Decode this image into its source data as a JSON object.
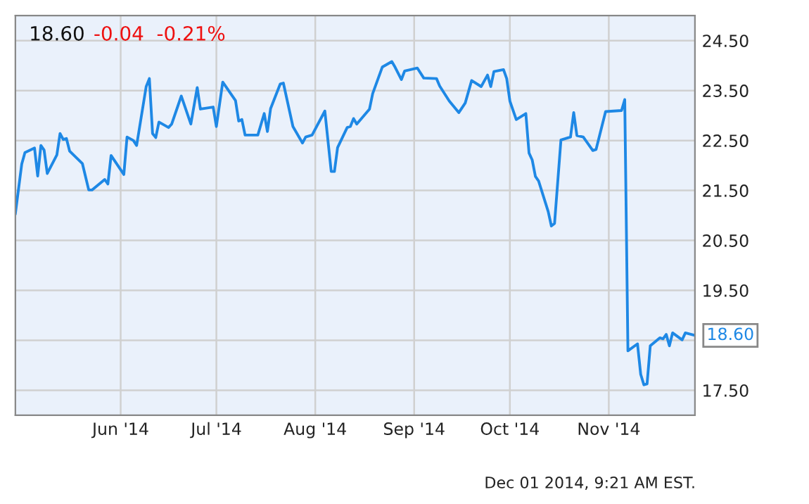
{
  "chart_data": {
    "type": "line",
    "title": "18.60",
    "subtitle": "-0.04  -0.21%",
    "annotations": [
      "Dec 01 2014, 9:21 AM EST."
    ],
    "x": [
      "2014-04-29",
      "2014-05-01",
      "2014-05-02",
      "2014-05-05",
      "2014-05-06",
      "2014-05-07",
      "2014-05-08",
      "2014-05-09",
      "2014-05-12",
      "2014-05-13",
      "2014-05-14",
      "2014-05-15",
      "2014-05-16",
      "2014-05-20",
      "2014-05-22",
      "2014-05-23",
      "2014-05-27",
      "2014-05-28",
      "2014-05-29",
      "2014-06-02",
      "2014-06-03",
      "2014-06-05",
      "2014-06-06",
      "2014-06-09",
      "2014-06-10",
      "2014-06-11",
      "2014-06-12",
      "2014-06-13",
      "2014-06-16",
      "2014-06-17",
      "2014-06-20",
      "2014-06-23",
      "2014-06-25",
      "2014-06-26",
      "2014-06-30",
      "2014-07-01",
      "2014-07-03",
      "2014-07-07",
      "2014-07-08",
      "2014-07-09",
      "2014-07-10",
      "2014-07-14",
      "2014-07-16",
      "2014-07-17",
      "2014-07-18",
      "2014-07-21",
      "2014-07-22",
      "2014-07-25",
      "2014-07-28",
      "2014-07-29",
      "2014-07-31",
      "2014-08-04",
      "2014-08-06",
      "2014-08-07",
      "2014-08-08",
      "2014-08-11",
      "2014-08-12",
      "2014-08-13",
      "2014-08-14",
      "2014-08-18",
      "2014-08-19",
      "2014-08-22",
      "2014-08-25",
      "2014-08-26",
      "2014-08-28",
      "2014-08-29",
      "2014-09-02",
      "2014-09-04",
      "2014-09-08",
      "2014-09-09",
      "2014-09-12",
      "2014-09-15",
      "2014-09-17",
      "2014-09-19",
      "2014-09-22",
      "2014-09-24",
      "2014-09-25",
      "2014-09-26",
      "2014-09-29",
      "2014-09-30",
      "2014-10-01",
      "2014-10-03",
      "2014-10-06",
      "2014-10-07",
      "2014-10-08",
      "2014-10-09",
      "2014-10-10",
      "2014-10-13",
      "2014-10-14",
      "2014-10-15",
      "2014-10-17",
      "2014-10-20",
      "2014-10-21",
      "2014-10-22",
      "2014-10-24",
      "2014-10-27",
      "2014-10-28",
      "2014-10-31",
      "2014-11-05",
      "2014-11-06",
      "2014-11-07",
      "2014-11-10",
      "2014-11-11",
      "2014-11-12",
      "2014-11-13",
      "2014-11-14",
      "2014-11-17",
      "2014-11-18",
      "2014-11-19",
      "2014-11-20",
      "2014-11-21",
      "2014-11-24",
      "2014-11-25",
      "2014-11-28"
    ],
    "series": [
      {
        "color": "#1e88e5",
        "values": [
          21.04,
          22.03,
          22.26,
          22.35,
          21.79,
          22.4,
          22.31,
          21.84,
          22.21,
          22.64,
          22.52,
          22.54,
          22.29,
          22.04,
          21.51,
          21.51,
          21.72,
          21.63,
          22.2,
          21.82,
          22.57,
          22.5,
          22.4,
          23.58,
          23.74,
          22.64,
          22.56,
          22.87,
          22.76,
          22.83,
          23.39,
          22.83,
          23.56,
          23.13,
          23.17,
          22.78,
          23.67,
          23.3,
          22.89,
          22.92,
          22.61,
          22.61,
          23.04,
          22.68,
          23.14,
          23.63,
          23.65,
          22.78,
          22.45,
          22.57,
          22.61,
          23.09,
          21.88,
          21.88,
          22.36,
          22.76,
          22.78,
          22.94,
          22.83,
          23.13,
          23.44,
          23.97,
          24.08,
          23.97,
          23.72,
          23.89,
          23.95,
          23.75,
          23.74,
          23.59,
          23.29,
          23.06,
          23.25,
          23.7,
          23.58,
          23.81,
          23.58,
          23.88,
          23.92,
          23.74,
          23.29,
          22.92,
          23.04,
          22.25,
          22.11,
          21.78,
          21.69,
          21.08,
          20.79,
          20.84,
          22.51,
          22.57,
          23.06,
          22.6,
          22.57,
          22.3,
          22.32,
          23.08,
          23.1,
          23.32,
          18.29,
          18.43,
          17.82,
          17.61,
          17.63,
          18.39,
          18.55,
          18.53,
          18.62,
          18.39,
          18.65,
          18.51,
          18.65,
          18.6
        ],
        "value_labels": [
          null,
          null,
          null,
          null,
          null,
          null,
          null,
          null,
          null,
          null,
          null,
          null,
          null,
          null,
          null,
          null,
          null,
          null,
          null,
          null,
          null,
          null,
          null,
          null,
          null,
          null,
          null,
          null,
          null,
          null,
          null,
          null,
          null,
          null,
          null,
          null,
          null,
          null,
          null,
          null,
          null,
          null,
          null,
          null,
          null,
          null,
          null,
          null,
          null,
          null,
          null,
          null,
          null,
          null,
          null,
          null,
          null,
          null,
          null,
          null,
          null,
          null,
          null,
          null,
          null,
          null,
          null,
          null,
          null,
          null,
          null,
          null,
          null,
          null,
          null,
          null,
          null,
          null,
          null,
          null,
          null,
          null,
          null,
          null,
          null,
          null,
          null,
          null,
          null,
          null,
          null,
          null,
          null,
          null,
          null,
          null,
          null,
          null,
          null,
          null,
          null,
          null,
          null,
          null,
          null,
          null,
          null,
          null,
          null,
          null,
          null,
          null,
          null,
          "18.60"
        ]
      }
    ],
    "xlim": [
      "2014-04-29",
      "2014-11-28"
    ],
    "xticks": [
      {
        "value": "2014-06-01",
        "label": "Jun '14"
      },
      {
        "value": "2014-07-01",
        "label": "Jul '14"
      },
      {
        "value": "2014-08-01",
        "label": "Aug '14"
      },
      {
        "value": "2014-09-01",
        "label": "Sep '14"
      },
      {
        "value": "2014-10-01",
        "label": "Oct '14"
      },
      {
        "value": "2014-11-01",
        "label": "Nov '14"
      }
    ],
    "ylim": [
      17,
      25
    ],
    "yticks": [
      {
        "value": 17.5,
        "label": "17.50"
      },
      {
        "value": 18.5,
        "label": null
      },
      {
        "value": 19.5,
        "label": "19.50"
      },
      {
        "value": 20.5,
        "label": "20.50"
      },
      {
        "value": 21.5,
        "label": "21.50"
      },
      {
        "value": 22.5,
        "label": "22.50"
      },
      {
        "value": 23.5,
        "label": "23.50"
      },
      {
        "value": 24.5,
        "label": "24.50"
      }
    ],
    "grid": true,
    "marker": "none",
    "line_style": "solid"
  }
}
